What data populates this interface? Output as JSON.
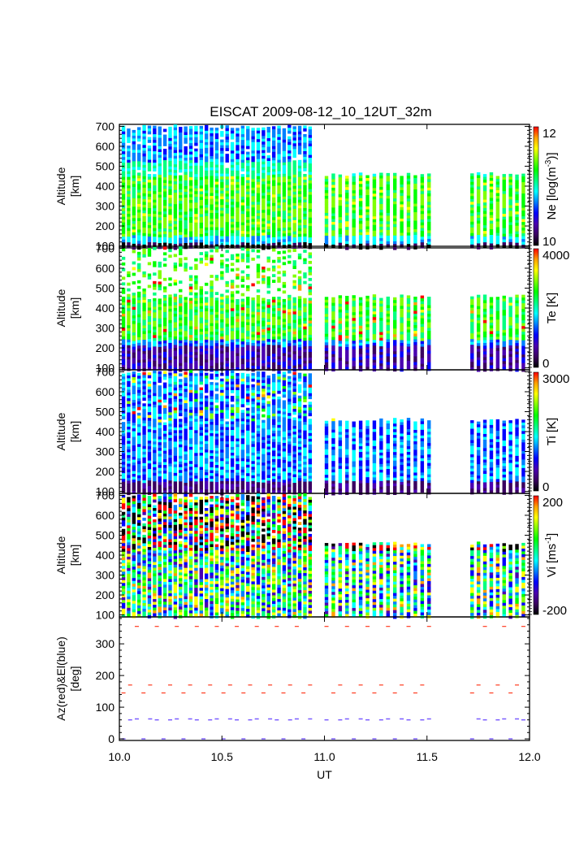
{
  "chart_data": [
    {
      "type": "heatmap",
      "panel": "Ne",
      "title": "EISCAT 2009-08-12_10_12UT_32m",
      "ylabel": [
        "Altitude",
        "[km]"
      ],
      "xlabel": "",
      "xlim": [
        10.0,
        12.0
      ],
      "ylim": [
        90,
        710
      ],
      "yticks": [
        100,
        200,
        300,
        400,
        500,
        600,
        700
      ],
      "colorbar": {
        "label": "Ne [log(m^-3)]",
        "label_main": "Ne [log(m",
        "label_sup": "-3",
        "label_end": ")]",
        "range": [
          10,
          12
        ],
        "tick_labels": [
          "12",
          "10"
        ]
      }
    },
    {
      "type": "heatmap",
      "panel": "Te",
      "ylabel": [
        "Altitude",
        "[km]"
      ],
      "xlim": [
        10.0,
        12.0
      ],
      "ylim": [
        90,
        710
      ],
      "yticks": [
        100,
        200,
        300,
        400,
        500,
        600,
        700
      ],
      "colorbar": {
        "label": "Te [K]",
        "range": [
          0,
          4000
        ],
        "tick_labels": [
          "4000",
          "0"
        ]
      }
    },
    {
      "type": "heatmap",
      "panel": "Ti",
      "ylabel": [
        "Altitude",
        "[km]"
      ],
      "xlim": [
        10.0,
        12.0
      ],
      "ylim": [
        90,
        710
      ],
      "yticks": [
        100,
        200,
        300,
        400,
        500,
        600,
        700
      ],
      "colorbar": {
        "label": "Ti [K]",
        "range": [
          0,
          3000
        ],
        "tick_labels": [
          "3000",
          "0"
        ]
      }
    },
    {
      "type": "heatmap",
      "panel": "Vi",
      "ylabel": [
        "Altitude",
        "[km]"
      ],
      "xlim": [
        10.0,
        12.0
      ],
      "ylim": [
        90,
        710
      ],
      "yticks": [
        100,
        200,
        300,
        400,
        500,
        600,
        700
      ],
      "colorbar": {
        "label": "Vi [ms^-1]",
        "label_main": "Vi [ms",
        "label_sup": "-1",
        "label_end": "]",
        "range": [
          -200,
          200
        ],
        "tick_labels": [
          "200",
          "-200"
        ]
      }
    },
    {
      "type": "scatter",
      "panel": "AzEl",
      "ylabel": [
        "Az(red)&El(blue)",
        "[deg]"
      ],
      "xlabel": "UT",
      "xlim": [
        10.0,
        12.0
      ],
      "ylim": [
        -5,
        385
      ],
      "yticks": [
        0,
        100,
        200,
        300
      ],
      "xticks": [
        10.0,
        10.5,
        11.0,
        11.5,
        12.0
      ],
      "xtick_labels": [
        "10.0",
        "10.5",
        "11.0",
        "11.5",
        "12.0"
      ],
      "series": [
        {
          "name": "Az",
          "color": "#ff3b1f",
          "levels": [
            355,
            170,
            145
          ],
          "note": "Repeating scan pattern; dashes alternate between levels"
        },
        {
          "name": "El",
          "color": "#7a5cff",
          "levels": [
            62,
            0
          ]
        }
      ]
    }
  ],
  "time_blocks": [
    {
      "start": 10.02,
      "end": 10.93,
      "columns": 37,
      "top_alt": 700
    },
    {
      "start": 11.01,
      "end": 11.51,
      "columns": 16,
      "top_alt": 460
    },
    {
      "start": 11.72,
      "end": 11.97,
      "columns": 9,
      "top_alt": 460
    }
  ],
  "colormap": [
    "#000000",
    "#3a0060",
    "#4a00b0",
    "#0000ff",
    "#0080ff",
    "#00ffff",
    "#00ff80",
    "#00ff00",
    "#80ff00",
    "#ffff00",
    "#ffa000",
    "#ff0000"
  ]
}
